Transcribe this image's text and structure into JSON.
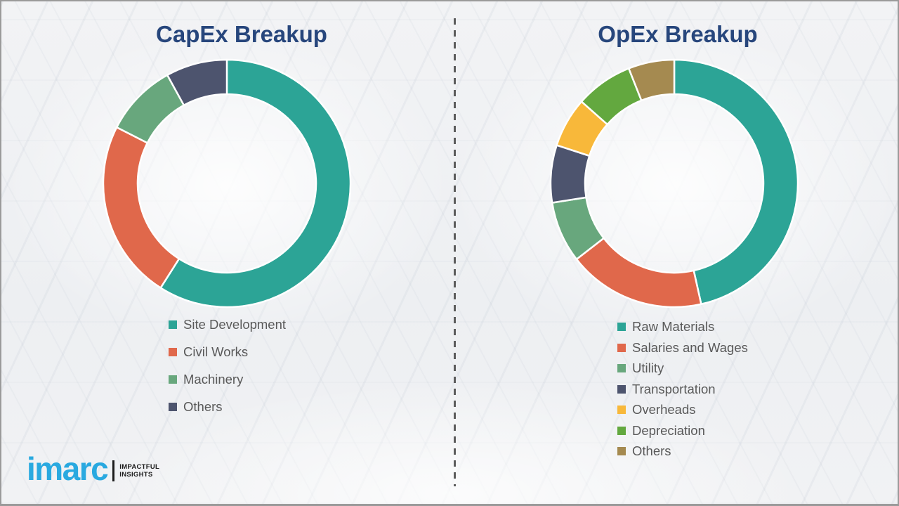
{
  "theme": {
    "title_color": "#27467c",
    "legend_text_color": "#595959",
    "divider_color": "#5c5c5c",
    "segment_gap_color": "#ffffff",
    "border_color": "#9a9a9a",
    "background_color": "#f0f2f4"
  },
  "chart_data": [
    {
      "type": "donut",
      "title": "CapEx Breakup",
      "legend_position": "bottom",
      "data_labels_shown": false,
      "values_note": "percent shares estimated from arc angles",
      "labels": [
        "Site Development",
        "Civil Works",
        "Machinery",
        "Others"
      ],
      "values": [
        59,
        23.5,
        9.5,
        8
      ],
      "colors": [
        "#2ca496",
        "#e0684b",
        "#68a77d",
        "#4d546e"
      ]
    },
    {
      "type": "donut",
      "title": "OpEx Breakup",
      "legend_position": "bottom",
      "data_labels_shown": false,
      "values_note": "percent shares estimated from arc angles",
      "labels": [
        "Raw Materials",
        "Salaries and Wages",
        "Utility",
        "Transportation",
        "Overheads",
        "Depreciation",
        "Others"
      ],
      "values": [
        46.5,
        18,
        8,
        7.5,
        6.5,
        7.5,
        6
      ],
      "colors": [
        "#2ca496",
        "#e0684b",
        "#68a77d",
        "#4d546e",
        "#f8b83a",
        "#63a83f",
        "#a58a50"
      ]
    }
  ],
  "logo": {
    "brand": "imarc",
    "brand_color": "#29a9e0",
    "tagline_line1": "IMPACTFUL",
    "tagline_line2": "INSIGHTS"
  }
}
